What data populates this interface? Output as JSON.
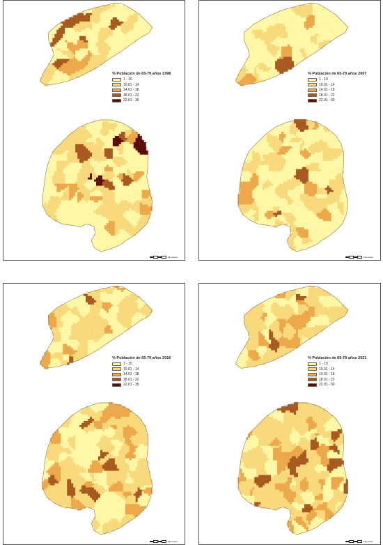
{
  "colors": {
    "c1": "#fdf7a6",
    "c2": "#f8d97b",
    "c3": "#eda84a",
    "c4": "#a8591e",
    "c5": "#5a0c08"
  },
  "legend_classes": [
    "1 - 10",
    "10.01 - 14",
    "14.01 - 18",
    "18.01 - 22",
    "22.01 - 30"
  ],
  "scale_label": "Kilometers",
  "panels": [
    {
      "id": "1998",
      "title": "% Población de 65-79 años 1998",
      "mix": [
        0.46,
        0.36,
        0.12,
        0.05,
        0.01
      ]
    },
    {
      "id": "2007",
      "title": "% Población de 65-79 años 2007",
      "mix": [
        0.64,
        0.29,
        0.06,
        0.01,
        0.0
      ]
    },
    {
      "id": "2016",
      "title": "% Población de 65-79 años 2016",
      "mix": [
        0.34,
        0.48,
        0.15,
        0.03,
        0.0
      ]
    },
    {
      "id": "2021",
      "title": "% Población de 65-79 años 2021",
      "mix": [
        0.26,
        0.49,
        0.2,
        0.05,
        0.0
      ]
    }
  ]
}
